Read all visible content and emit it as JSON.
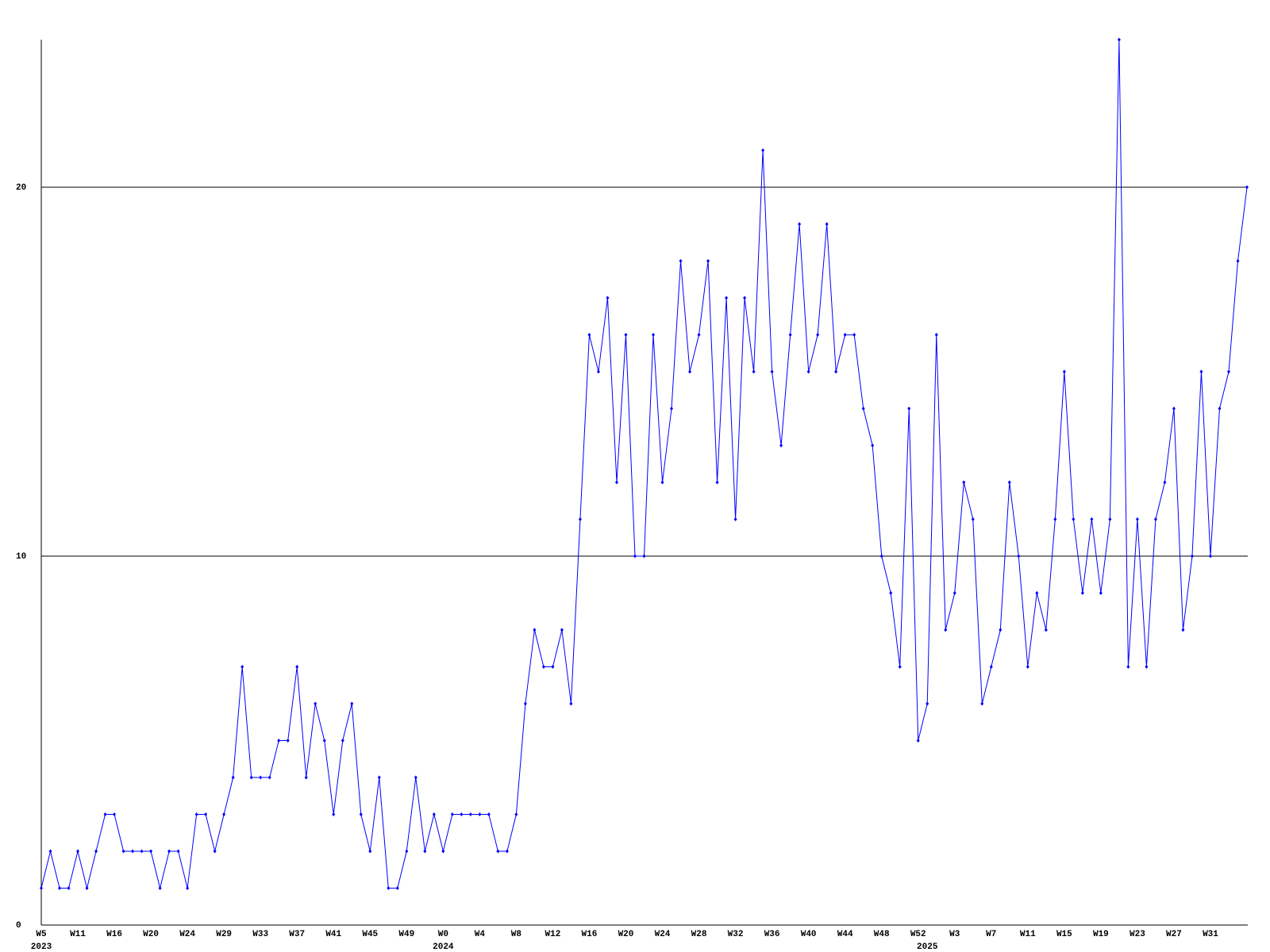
{
  "chart_data": {
    "type": "line",
    "categories": [
      "W5",
      null,
      null,
      null,
      "W11",
      null,
      null,
      null,
      "W16",
      null,
      null,
      null,
      "W20",
      null,
      null,
      null,
      "W24",
      null,
      null,
      null,
      "W29",
      null,
      null,
      null,
      "W33",
      null,
      null,
      null,
      "W37",
      null,
      null,
      null,
      "W41",
      null,
      null,
      null,
      "W45",
      null,
      null,
      null,
      "W49",
      null,
      null,
      null,
      "W0",
      null,
      null,
      null,
      "W4",
      null,
      null,
      null,
      "W8",
      null,
      null,
      null,
      "W12",
      null,
      null,
      null,
      "W16",
      null,
      null,
      null,
      "W20",
      null,
      null,
      null,
      "W24",
      null,
      null,
      null,
      "W28",
      null,
      null,
      null,
      "W32",
      null,
      null,
      null,
      "W36",
      null,
      null,
      null,
      "W40",
      null,
      null,
      null,
      "W44",
      null,
      null,
      null,
      "W48",
      null,
      null,
      null,
      "W52",
      null,
      null,
      null,
      "W3",
      null,
      null,
      null,
      "W7",
      null,
      null,
      null,
      "W11",
      null,
      null,
      null,
      "W15",
      null,
      null,
      null,
      "W19",
      null,
      null,
      null,
      "W23",
      null,
      null,
      null,
      "W27",
      null,
      null,
      null,
      "W31",
      null,
      null,
      null,
      null
    ],
    "year_labels": [
      "2023",
      null,
      null,
      null,
      null,
      null,
      null,
      null,
      null,
      null,
      null,
      null,
      null,
      null,
      null,
      null,
      null,
      null,
      null,
      null,
      null,
      null,
      null,
      null,
      null,
      null,
      null,
      null,
      null,
      null,
      null,
      null,
      null,
      null,
      null,
      null,
      null,
      null,
      null,
      null,
      null,
      null,
      null,
      null,
      "2024",
      null,
      null,
      null,
      null,
      null,
      null,
      null,
      null,
      null,
      null,
      null,
      null,
      null,
      null,
      null,
      null,
      null,
      null,
      null,
      null,
      null,
      null,
      null,
      null,
      null,
      null,
      null,
      null,
      null,
      null,
      null,
      null,
      null,
      null,
      null,
      null,
      null,
      null,
      null,
      null,
      null,
      null,
      null,
      null,
      null,
      null,
      null,
      null,
      null,
      null,
      null,
      null,
      "2025",
      null,
      null,
      null,
      null,
      null,
      null,
      null,
      null,
      null,
      null,
      null,
      null,
      null,
      null,
      null,
      null,
      null,
      null,
      null,
      null,
      null,
      null,
      null,
      null,
      null,
      null,
      null,
      null,
      null,
      null,
      null,
      null,
      null,
      null,
      null
    ],
    "series": [
      {
        "color": "#0000ff",
        "values": [
          1,
          2,
          1,
          1,
          2,
          1,
          2,
          3,
          3,
          2,
          2,
          2,
          2,
          1,
          2,
          2,
          1,
          3,
          3,
          2,
          3,
          4,
          7,
          4,
          4,
          4,
          5,
          5,
          7,
          4,
          6,
          5,
          3,
          5,
          6,
          3,
          2,
          4,
          1,
          1,
          2,
          4,
          2,
          3,
          2,
          3,
          3,
          3,
          3,
          3,
          2,
          2,
          3,
          6,
          8,
          7,
          7,
          8,
          6,
          11,
          16,
          15,
          17,
          12,
          16,
          10,
          10,
          16,
          12,
          14,
          18,
          15,
          16,
          18,
          12,
          17,
          11,
          17,
          15,
          21,
          15,
          13,
          16,
          19,
          15,
          16,
          19,
          15,
          16,
          16,
          14,
          13,
          10,
          9,
          7,
          14,
          5,
          6,
          16,
          8,
          9,
          12,
          11,
          6,
          7,
          8,
          12,
          10,
          7,
          9,
          8,
          11,
          15,
          11,
          9,
          11,
          9,
          11,
          24,
          7,
          11,
          7,
          11,
          12,
          14,
          8,
          10,
          15,
          10,
          14,
          15,
          18,
          20
        ]
      }
    ],
    "ylim": [
      0,
      24
    ],
    "yticks": [
      0,
      10,
      20
    ],
    "grid": true
  }
}
